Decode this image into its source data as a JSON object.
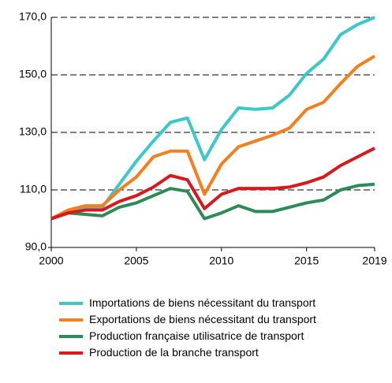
{
  "chart_data": {
    "type": "line",
    "x": [
      2000,
      2001,
      2002,
      2003,
      2004,
      2005,
      2006,
      2007,
      2008,
      2009,
      2010,
      2011,
      2012,
      2013,
      2014,
      2015,
      2016,
      2017,
      2018,
      2019
    ],
    "xlim": [
      2000,
      2019
    ],
    "xticks": [
      2000,
      2005,
      2010,
      2015,
      2019
    ],
    "ylim": [
      90,
      170
    ],
    "yticks": [
      {
        "value": 90,
        "label": "90,0"
      },
      {
        "value": 110,
        "label": "110,0"
      },
      {
        "value": 130,
        "label": "130,0"
      },
      {
        "value": 150,
        "label": "150,0"
      },
      {
        "value": 170,
        "label": "170,0"
      }
    ],
    "grid": true,
    "series": [
      {
        "name": "Importations de biens nécessitant du transport",
        "color": "#3cc8c8",
        "values": [
          100,
          102,
          103.5,
          104,
          112,
          120,
          127,
          133.5,
          135,
          120.5,
          131,
          138.5,
          138,
          138.5,
          143,
          150.5,
          155.5,
          164,
          167.5,
          170
        ]
      },
      {
        "name": "Exportations de biens nécessitant du transport",
        "color": "#f57f1e",
        "values": [
          100,
          103,
          104.5,
          104.5,
          110,
          114.5,
          121.5,
          123.5,
          123.5,
          108.5,
          119,
          125,
          127,
          129,
          131.5,
          138,
          140.5,
          147,
          153,
          156.5
        ]
      },
      {
        "name": "Production française utilisatrice de transport",
        "color": "#2e8b57",
        "values": [
          100,
          102,
          101.5,
          101,
          104,
          105.5,
          108,
          110.5,
          109.5,
          100,
          102,
          104.5,
          102.5,
          102.5,
          104,
          105.5,
          106.5,
          110,
          111.5,
          112
        ]
      },
      {
        "name": "Production de la branche transport",
        "color": "#d7191c",
        "values": [
          100,
          102,
          103,
          103,
          106,
          108,
          111,
          115,
          113.5,
          103.5,
          108.5,
          110.5,
          110.5,
          110.5,
          111,
          112.5,
          114.5,
          118.5,
          121.5,
          124.5
        ]
      }
    ]
  }
}
